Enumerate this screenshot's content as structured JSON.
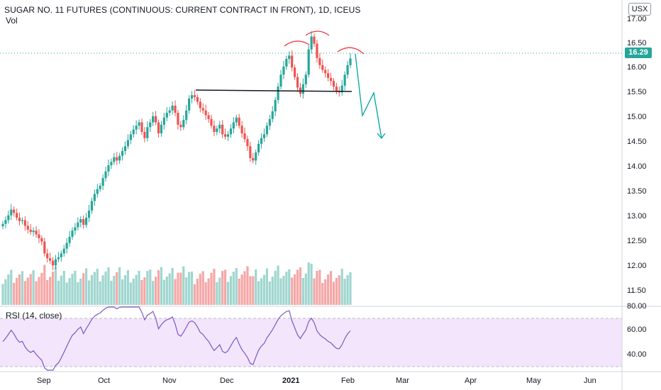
{
  "header": {
    "title": "SUGAR NO. 11 FUTURES (CONTINUOUS: CURRENT CONTRACT IN FRONT), 1D, ICEUS",
    "volume_label": "Vol",
    "currency": "USX",
    "last_price": "16.29"
  },
  "rsi": {
    "label": "RSI (14, close)",
    "ticks": [
      "80.00",
      "60.00",
      "40.00"
    ]
  },
  "price_axis": {
    "ticks": [
      "17.00",
      "16.50",
      "16.00",
      "15.50",
      "15.00",
      "14.50",
      "14.00",
      "13.50",
      "13.00",
      "12.50",
      "12.00",
      "11.50"
    ]
  },
  "time_axis": {
    "labels": [
      "Sep",
      "Oct",
      "Nov",
      "Dec",
      "2021",
      "Feb",
      "Mar",
      "Apr",
      "May",
      "Jun"
    ]
  },
  "colors": {
    "up": "#26a69a",
    "down": "#ef5350",
    "rsi_line": "#7e57c2",
    "rsi_band": "#f3e5fc",
    "annotation": "#f23645",
    "neckline": "#131722",
    "projection": "#00a3a3"
  },
  "chart_data": {
    "type": "candlestick",
    "symbol": "SUGAR NO. 11 FUTURES (CONTINUOUS: CURRENT CONTRACT IN FRONT)",
    "interval": "1D",
    "exchange": "ICEUS",
    "currency": "USX",
    "last_price": 16.29,
    "ylim": [
      11.3,
      17.1
    ],
    "rsi_ylim": [
      27,
      82
    ],
    "rsi_bands": [
      70,
      30
    ],
    "neckline": 15.54,
    "closes": [
      12.82,
      12.9,
      13.0,
      13.12,
      13.05,
      12.95,
      12.88,
      12.9,
      12.78,
      12.7,
      12.65,
      12.68,
      12.6,
      12.52,
      12.45,
      12.2,
      12.1,
      12.05,
      11.95,
      12.08,
      12.12,
      12.2,
      12.3,
      12.42,
      12.55,
      12.68,
      12.75,
      12.85,
      12.92,
      12.8,
      12.95,
      13.1,
      13.3,
      13.45,
      13.55,
      13.62,
      13.78,
      13.92,
      14.05,
      14.12,
      14.22,
      14.15,
      14.25,
      14.35,
      14.45,
      14.58,
      14.7,
      14.8,
      14.88,
      14.95,
      14.75,
      14.62,
      14.85,
      14.95,
      15.08,
      14.95,
      14.72,
      14.9,
      15.05,
      15.15,
      15.2,
      15.3,
      15.15,
      14.9,
      14.85,
      15.0,
      15.2,
      15.45,
      15.52,
      15.48,
      15.38,
      15.25,
      15.2,
      15.1,
      15.02,
      14.88,
      14.75,
      14.82,
      14.9,
      14.7,
      14.65,
      14.7,
      14.82,
      14.95,
      15.05,
      14.88,
      14.72,
      14.6,
      14.45,
      14.2,
      14.15,
      14.32,
      14.5,
      14.62,
      14.7,
      14.88,
      15.02,
      15.18,
      15.42,
      15.7,
      15.95,
      16.12,
      16.28,
      16.35,
      16.1,
      15.9,
      15.68,
      15.55,
      15.75,
      15.95,
      16.48,
      16.75,
      16.6,
      16.3,
      16.15,
      16.05,
      15.98,
      15.88,
      15.82,
      15.7,
      15.6,
      15.58,
      15.72,
      15.95,
      16.15,
      16.29
    ],
    "projection": [
      [
        16.29
      ],
      [
        15.6
      ],
      [
        15.05
      ],
      [
        15.55
      ],
      [
        14.6
      ]
    ],
    "annotations": [
      "head-and-shoulders left shoulder",
      "head",
      "right shoulder",
      "neckline",
      "projected path"
    ]
  }
}
